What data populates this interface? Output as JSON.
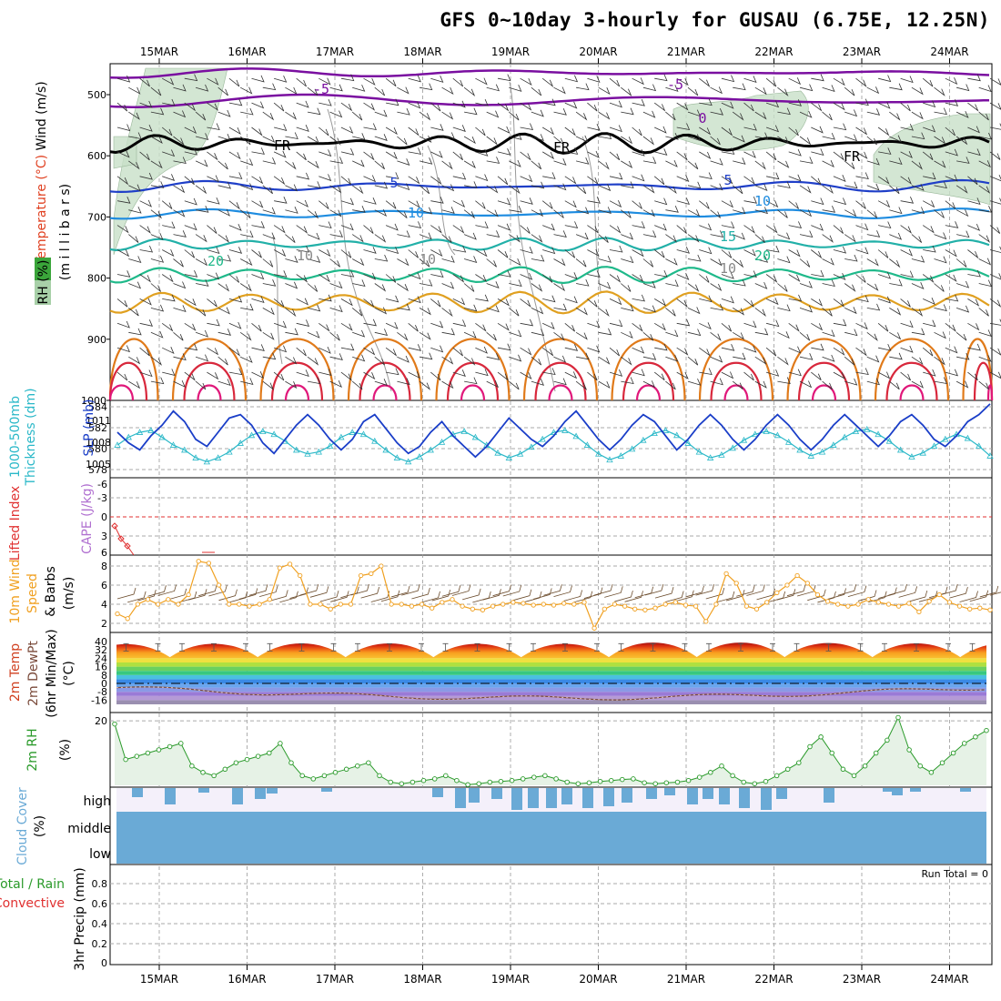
{
  "title": "GFS 0~10day 3-hourly for GUSAU (6.75E, 12.25N)",
  "run_total": "Run Total = 0",
  "dates": [
    "15MAR",
    "16MAR",
    "17MAR",
    "18MAR",
    "19MAR",
    "20MAR",
    "21MAR",
    "22MAR",
    "23MAR",
    "24MAR"
  ],
  "colors": {
    "rh_shade": "#c8e0c8",
    "temp_minus5": "#7a0fa0",
    "temp_freezing": "#000000",
    "temp_5": "#1f3fc8",
    "temp_10": "#1e8ce0",
    "temp_15": "#22b0a8",
    "temp_20": "#1fb98a",
    "temp_25": "#e0a020",
    "temp_30": "#e07a1a",
    "temp_35": "#d8283c",
    "temp_40": "#e0187a",
    "slp_line": "#1a3ec8",
    "thickness_line": "#2ab8c8",
    "lifted_index": "#e03030",
    "wind_speed": "#f0a020",
    "rh2m": "#2a9a2a",
    "cloud": "#6aaad6",
    "cloud_bg": "#f4f0fa"
  },
  "panels": {
    "cross_section": {
      "labels": [
        "Wind (m/s)",
        "Temperature (°C)",
        "RH (%)",
        "(m i l l i b a r s)"
      ],
      "y_ticks": [
        "500",
        "600",
        "700",
        "800",
        "900",
        "1000"
      ],
      "contour_labels": [
        "-5",
        "-5",
        "0",
        "FR",
        "FR",
        "FR",
        "5",
        "5",
        "10",
        "10",
        "15",
        "20",
        "20",
        "10",
        "10",
        "10"
      ]
    },
    "pressure": {
      "labels": [
        "1000-500mb",
        "Thickness (dm)",
        "SLP (mb)"
      ],
      "left_ticks": [
        "584",
        "582",
        "580",
        "578"
      ],
      "right_ticks": [
        "1011",
        "1008",
        "1005"
      ]
    },
    "stability": {
      "labels": [
        "Lifted Index",
        "CAPE (J/kg)"
      ],
      "ticks": [
        "-6",
        "-3",
        "0",
        "3",
        "6"
      ]
    },
    "wind10": {
      "labels": [
        "10m Wind",
        "Speed",
        "& Barbs",
        "(m/s)"
      ],
      "ticks": [
        "8",
        "6",
        "4",
        "2"
      ]
    },
    "temp2m": {
      "labels": [
        "2m Temp",
        "2m DewPt",
        "(6hr Min/Max)",
        "(°C)"
      ],
      "ticks": [
        "40",
        "32",
        "24",
        "16",
        "8",
        "0",
        "-8",
        "-16"
      ]
    },
    "rh2m": {
      "labels": [
        "2m RH",
        "(%)"
      ],
      "ticks": [
        "20"
      ]
    },
    "cloud": {
      "labels": [
        "Cloud Cover",
        "(%)"
      ],
      "levels": [
        "high",
        "middle",
        "low"
      ]
    },
    "precip": {
      "labels": [
        "Total / Rain",
        "Convective",
        "3hr Precip (mm)"
      ],
      "ticks": [
        "0.8",
        "0.6",
        "0.4",
        "0.2",
        "0"
      ]
    }
  },
  "chart_data": [
    {
      "type": "line",
      "title": "1000-500mb Thickness (dm) / SLP (mb)",
      "x": "3-hourly steps 14MAR 12Z to 24MAR 06Z",
      "series": [
        {
          "name": "SLP (mb)",
          "values": [
            1008.5,
            1007,
            1006,
            1008,
            1009.5,
            1011.5,
            1010,
            1007.5,
            1006.5,
            1008.5,
            1010.5,
            1011,
            1009.5,
            1007,
            1005.5,
            1007.5,
            1009.5,
            1011,
            1009.5,
            1007.5,
            1006,
            1007.5,
            1010,
            1011,
            1009,
            1007,
            1005.5,
            1006.5,
            1008.5,
            1010,
            1008,
            1006.5,
            1005,
            1006.5,
            1008.5,
            1010.5,
            1009,
            1007.5,
            1006.5,
            1008,
            1010,
            1011.5,
            1009.5,
            1007.5,
            1006,
            1007.5,
            1009.5,
            1011,
            1010,
            1008,
            1006,
            1007.5,
            1009.5,
            1011,
            1009.5,
            1007.5,
            1006,
            1007.5,
            1009.5,
            1011,
            1009.5,
            1007.5,
            1006,
            1007.5,
            1009.5,
            1011,
            1009.5,
            1008,
            1006.5,
            1008,
            1010,
            1011,
            1009.5,
            1007.5,
            1006.5,
            1008,
            1010,
            1011,
            1012.5
          ]
        },
        {
          "name": "1000-500mb Thickness (dm)",
          "values": [
            580.5,
            581.3,
            581.8,
            582,
            581.3,
            580.5,
            580,
            579.2,
            578.8,
            579.2,
            579.8,
            580.7,
            581.5,
            581.9,
            581.6,
            580.9,
            580,
            579.6,
            579.8,
            580.4,
            581.3,
            581.8,
            581.6,
            580.9,
            580,
            579.2,
            578.8,
            579.3,
            580,
            580.8,
            581.6,
            581.9,
            581.3,
            580.5,
            579.7,
            579.2,
            579.6,
            580.3,
            581.1,
            581.8,
            582,
            581.4,
            580.5,
            579.6,
            579,
            579.4,
            580.1,
            581,
            581.7,
            582,
            581.5,
            580.7,
            579.8,
            579.2,
            579.5,
            580.2,
            581,
            581.6,
            581.9,
            581.5,
            580.8,
            580,
            579.4,
            579.8,
            580.5,
            581.3,
            581.9,
            582.1,
            581.6,
            580.9,
            580,
            579.3,
            579.7,
            580.4,
            581.1,
            581.6,
            581.2,
            580.4,
            579.4
          ]
        }
      ],
      "ylim": [
        577,
        585
      ]
    },
    {
      "type": "line",
      "title": "10m Wind Speed (m/s)",
      "series": [
        {
          "name": "10m Wind Speed",
          "values": [
            3,
            2.5,
            4,
            4.5,
            4,
            4.5,
            4,
            5,
            8.5,
            8.3,
            6,
            4,
            4,
            3.8,
            4,
            4.5,
            7.8,
            8.2,
            7,
            4,
            4,
            3.5,
            4,
            4,
            7,
            7.2,
            8,
            4,
            4,
            3.8,
            4,
            3.6,
            4.2,
            4.5,
            3.8,
            3.5,
            3.4,
            3.8,
            4,
            4.2,
            4.1,
            3.9,
            4,
            3.9,
            4.1,
            4,
            4.2,
            1.5,
            3.5,
            4,
            3.8,
            3.5,
            3.4,
            3.6,
            4,
            4.2,
            3.9,
            3.8,
            2.2,
            4,
            7.2,
            6.2,
            3.8,
            3.5,
            4.2,
            5.2,
            6,
            7,
            6.2,
            5,
            4.3,
            4,
            3.8,
            4,
            4.5,
            4.2,
            4,
            3.8,
            4.1,
            3.2,
            4.3,
            5,
            4.2,
            3.8,
            3.5,
            3.6,
            3.4
          ]
        }
      ],
      "ylim": [
        1,
        9
      ]
    },
    {
      "type": "line",
      "title": "2m RH (%)",
      "series": [
        {
          "name": "2m RH",
          "values": [
            19,
            8,
            9,
            10,
            11,
            12,
            13,
            6,
            4,
            3,
            5,
            7,
            8,
            9,
            10,
            13,
            7,
            3,
            2,
            3,
            4,
            5,
            6,
            7,
            3,
            1,
            0.5,
            1,
            1.5,
            2,
            3,
            1.5,
            0.2,
            0.5,
            1,
            1.2,
            1.5,
            2,
            2.5,
            3,
            2,
            1,
            0.5,
            0.8,
            1.2,
            1.5,
            1.8,
            2,
            0.8,
            0.5,
            0.8,
            1,
            1.5,
            2.5,
            4,
            6,
            3,
            1,
            0.5,
            1.2,
            3,
            5,
            7,
            12,
            15,
            10,
            5,
            3,
            6,
            10,
            14,
            21,
            11,
            6,
            4,
            7,
            10,
            13,
            15,
            17
          ]
        }
      ],
      "ylim": [
        0,
        22
      ]
    },
    {
      "type": "heatmap",
      "title": "2m Temp (°C) diurnal cycle",
      "series": [
        {
          "name": "2m Temp max",
          "values": [
            38,
            38.5,
            39,
            39,
            38.5,
            38.5,
            40,
            40,
            39.5,
            39
          ]
        }
      ],
      "ylim": [
        -20,
        42
      ]
    }
  ]
}
